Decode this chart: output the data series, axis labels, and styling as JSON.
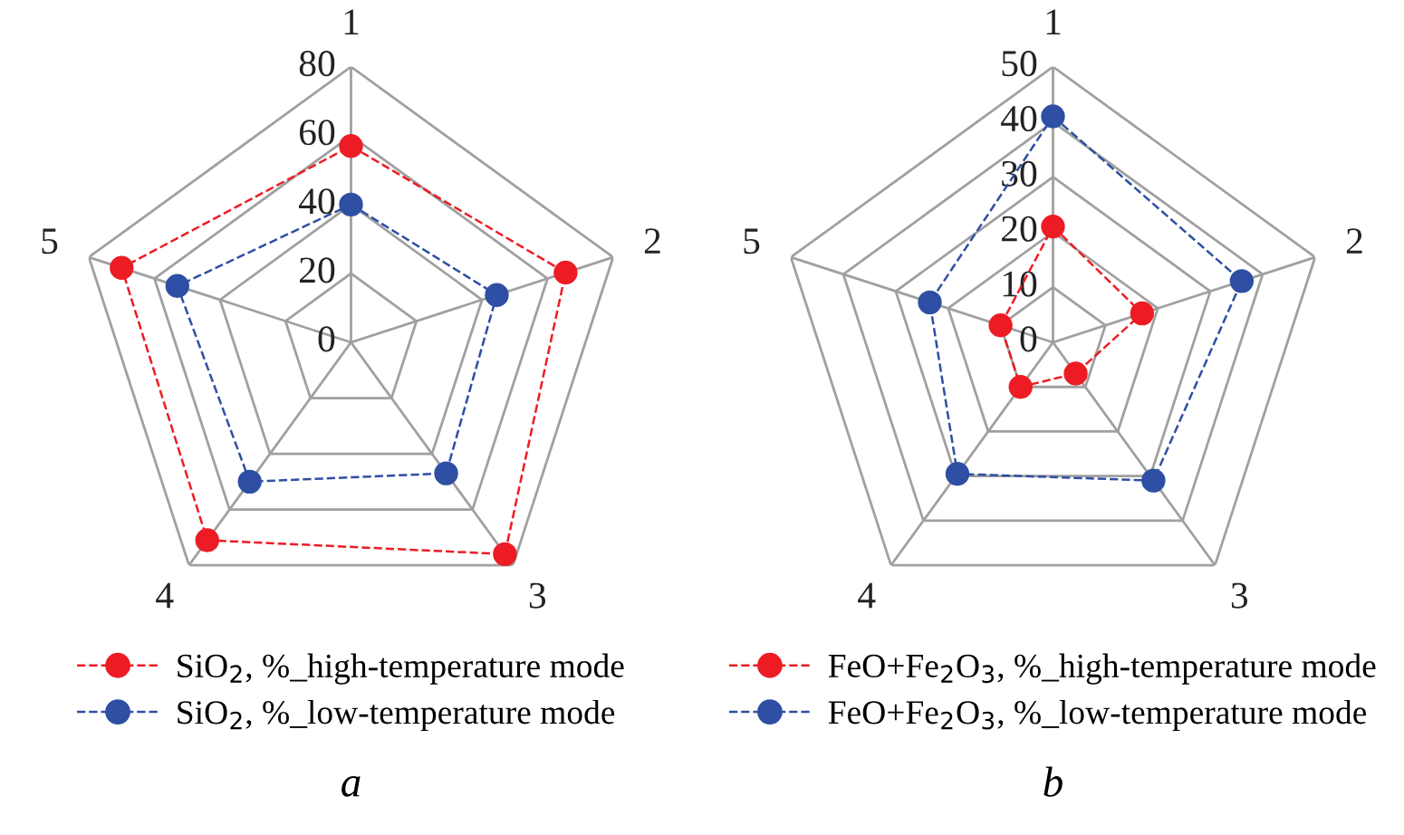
{
  "chart_data": [
    {
      "type": "radar",
      "categories": [
        "1",
        "2",
        "3",
        "4",
        "5"
      ],
      "ylim": [
        0,
        80
      ],
      "yticks": [
        0,
        20,
        40,
        60,
        80
      ],
      "grid": true,
      "legend": "bottom",
      "marker": "circle",
      "line_style": "dashed",
      "annotations": [
        "a"
      ],
      "series": [
        {
          "name": "SiO$_{2}$, %_high-temperature mode",
          "color": "#ed1c24",
          "values": [
            57,
            65.5,
            76,
            71,
            70
          ]
        },
        {
          "name": "SiO$_{2}$, %_low-temperature mode",
          "color": "#2e4fa3",
          "values": [
            40,
            44.5,
            47,
            50,
            53
          ]
        }
      ]
    },
    {
      "type": "radar",
      "categories": [
        "1",
        "2",
        "3",
        "4",
        "5"
      ],
      "ylim": [
        0,
        50
      ],
      "yticks": [
        0,
        10,
        20,
        30,
        40,
        50
      ],
      "grid": true,
      "legend": "bottom",
      "marker": "circle",
      "line_style": "dashed",
      "annotations": [
        "b"
      ],
      "series": [
        {
          "name": "FeO+Fe$_{2}$O$_{3}$, %_high-temperature mode",
          "color": "#ed1c24",
          "values": [
            21,
            17,
            7,
            10,
            10
          ]
        },
        {
          "name": "FeO+Fe$_{2}$O$_{3}$, %_low-temperature mode",
          "color": "#2e4fa3",
          "values": [
            41,
            36,
            31,
            29.5,
            23.5
          ]
        }
      ]
    }
  ]
}
